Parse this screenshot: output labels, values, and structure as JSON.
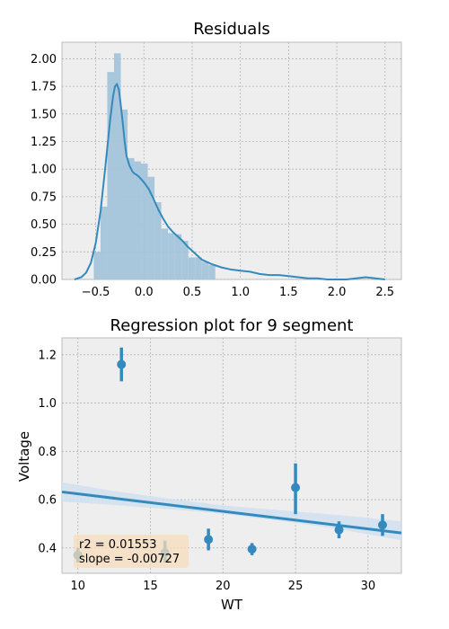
{
  "chart_data": [
    {
      "type": "histogram",
      "title": "Residuals",
      "xlabel": "",
      "ylabel": "",
      "xlim": [
        -0.85,
        2.67
      ],
      "ylim": [
        0,
        2.15
      ],
      "xticks": [
        "−0.5",
        "0.0",
        "0.5",
        "1.0",
        "1.5",
        "2.0",
        "2.5"
      ],
      "xtick_values": [
        -0.5,
        0.0,
        0.5,
        1.0,
        1.5,
        2.0,
        2.5
      ],
      "yticks": [
        "0.00",
        "0.25",
        "0.50",
        "0.75",
        "1.00",
        "1.25",
        "1.50",
        "1.75",
        "2.00"
      ],
      "ytick_values": [
        0,
        0.25,
        0.5,
        0.75,
        1.0,
        1.25,
        1.5,
        1.75,
        2.0
      ],
      "grid": true,
      "bins": [
        {
          "x0": -0.52,
          "x1": -0.45,
          "density": 0.25
        },
        {
          "x0": -0.45,
          "x1": -0.38,
          "density": 0.66
        },
        {
          "x0": -0.38,
          "x1": -0.31,
          "density": 1.88
        },
        {
          "x0": -0.31,
          "x1": -0.24,
          "density": 2.05
        },
        {
          "x0": -0.24,
          "x1": -0.17,
          "density": 1.54
        },
        {
          "x0": -0.17,
          "x1": -0.1,
          "density": 1.1
        },
        {
          "x0": -0.1,
          "x1": -0.03,
          "density": 1.07
        },
        {
          "x0": -0.03,
          "x1": 0.04,
          "density": 1.05
        },
        {
          "x0": 0.04,
          "x1": 0.11,
          "density": 0.93
        },
        {
          "x0": 0.11,
          "x1": 0.18,
          "density": 0.7
        },
        {
          "x0": 0.18,
          "x1": 0.25,
          "density": 0.46
        },
        {
          "x0": 0.25,
          "x1": 0.32,
          "density": 0.42
        },
        {
          "x0": 0.32,
          "x1": 0.39,
          "density": 0.41
        },
        {
          "x0": 0.39,
          "x1": 0.46,
          "density": 0.35
        },
        {
          "x0": 0.46,
          "x1": 0.53,
          "density": 0.2
        },
        {
          "x0": 0.53,
          "x1": 0.6,
          "density": 0.2
        },
        {
          "x0": 0.6,
          "x1": 0.67,
          "density": 0.16
        },
        {
          "x0": 0.67,
          "x1": 0.74,
          "density": 0.13
        }
      ],
      "kde": {
        "x": [
          -0.72,
          -0.65,
          -0.6,
          -0.55,
          -0.5,
          -0.45,
          -0.4,
          -0.35,
          -0.32,
          -0.3,
          -0.28,
          -0.26,
          -0.24,
          -0.22,
          -0.2,
          -0.18,
          -0.15,
          -0.12,
          -0.1,
          -0.08,
          -0.05,
          0.0,
          0.05,
          0.1,
          0.15,
          0.2,
          0.25,
          0.3,
          0.35,
          0.4,
          0.45,
          0.5,
          0.55,
          0.6,
          0.7,
          0.8,
          0.9,
          1.0,
          1.1,
          1.2,
          1.3,
          1.4,
          1.5,
          1.6,
          1.7,
          1.8,
          1.9,
          2.0,
          2.1,
          2.2,
          2.3,
          2.4,
          2.5
        ],
        "y": [
          0.0,
          0.02,
          0.06,
          0.15,
          0.33,
          0.62,
          1.02,
          1.45,
          1.66,
          1.75,
          1.77,
          1.72,
          1.58,
          1.42,
          1.25,
          1.12,
          1.03,
          0.98,
          0.96,
          0.95,
          0.93,
          0.88,
          0.82,
          0.73,
          0.63,
          0.55,
          0.48,
          0.43,
          0.39,
          0.35,
          0.3,
          0.26,
          0.22,
          0.18,
          0.14,
          0.11,
          0.09,
          0.08,
          0.07,
          0.05,
          0.04,
          0.04,
          0.03,
          0.02,
          0.01,
          0.01,
          0.0,
          0.0,
          0.0,
          0.01,
          0.02,
          0.01,
          0.0
        ]
      },
      "colors": {
        "hist": "#a3c4da",
        "kde": "#348abd"
      }
    },
    {
      "type": "scatter",
      "title": "Regression plot for 9 segment",
      "xlabel": "WT",
      "ylabel": "Voltage",
      "xlim": [
        8.9,
        32.3
      ],
      "ylim": [
        0.295,
        1.27
      ],
      "xticks": [
        "10",
        "15",
        "20",
        "25",
        "30"
      ],
      "xtick_values": [
        10,
        15,
        20,
        25,
        30
      ],
      "yticks": [
        "0.4",
        "0.6",
        "0.8",
        "1.0",
        "1.2"
      ],
      "ytick_values": [
        0.4,
        0.6,
        0.8,
        1.0,
        1.2
      ],
      "grid": true,
      "points": [
        {
          "x": 10,
          "y": 0.37,
          "lo": 0.34,
          "hi": 0.4
        },
        {
          "x": 13,
          "y": 1.16,
          "lo": 1.09,
          "hi": 1.23
        },
        {
          "x": 16,
          "y": 0.38,
          "lo": 0.34,
          "hi": 0.43
        },
        {
          "x": 19,
          "y": 0.435,
          "lo": 0.39,
          "hi": 0.48
        },
        {
          "x": 22,
          "y": 0.395,
          "lo": 0.37,
          "hi": 0.42
        },
        {
          "x": 25,
          "y": 0.65,
          "lo": 0.54,
          "hi": 0.75
        },
        {
          "x": 28,
          "y": 0.475,
          "lo": 0.44,
          "hi": 0.51
        },
        {
          "x": 31,
          "y": 0.495,
          "lo": 0.45,
          "hi": 0.54
        }
      ],
      "regression": {
        "x0": 8.9,
        "y0": 0.632,
        "x1": 32.3,
        "y1": 0.462
      },
      "ci_band": {
        "x": [
          8.9,
          12,
          16,
          20,
          24,
          28,
          32.3
        ],
        "lo": [
          0.592,
          0.58,
          0.562,
          0.542,
          0.512,
          0.478,
          0.432
        ],
        "hi": [
          0.672,
          0.64,
          0.606,
          0.576,
          0.556,
          0.536,
          0.51
        ]
      },
      "annotation": [
        "r2 = 0.01553",
        "slope = -0.00727"
      ],
      "colors": {
        "marker": "#348abd",
        "line": "#348abd",
        "band": "#cfe0ee",
        "annot_bg": "#f5dcb9"
      }
    }
  ]
}
